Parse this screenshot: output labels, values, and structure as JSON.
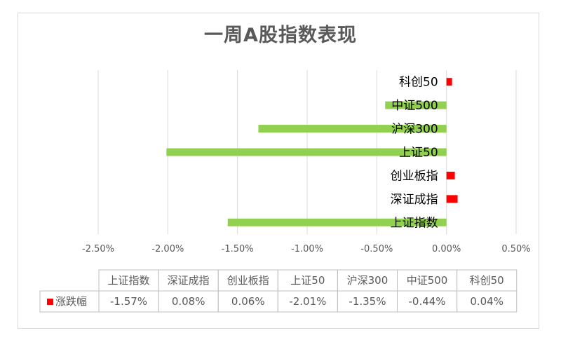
{
  "chart_data": {
    "type": "bar",
    "orientation": "horizontal",
    "title": "一周A股指数表现",
    "categories": [
      "上证指数",
      "深证成指",
      "创业板指",
      "上证50",
      "沪深300",
      "中证500",
      "科创50"
    ],
    "series": [
      {
        "name": "涨跌幅",
        "values": [
          -1.57,
          0.08,
          0.06,
          -2.01,
          -1.35,
          -0.44,
          0.04
        ]
      }
    ],
    "value_unit": "%",
    "xlim": [
      -2.5,
      0.5
    ],
    "x_ticks": [
      -2.5,
      -2.0,
      -1.5,
      -1.0,
      -0.5,
      0.0,
      0.5
    ],
    "x_tick_labels": [
      "-2.50%",
      "-2.00%",
      "-1.50%",
      "-1.00%",
      "-0.50%",
      "0.00%",
      "0.50%"
    ],
    "grid": "vertical",
    "data_table": {
      "legend_key": "涨跌幅",
      "values_text": [
        "-1.57%",
        "0.08%",
        "0.06%",
        "-2.01%",
        "-1.35%",
        "-0.44%",
        "0.04%"
      ]
    },
    "colors": {
      "negative": "#92d050",
      "positive": "#ff0000",
      "legend": "#ff0000"
    }
  }
}
